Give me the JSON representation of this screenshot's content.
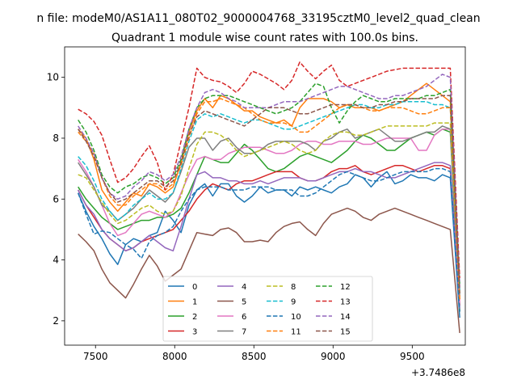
{
  "chart_data": {
    "type": "line",
    "suptitle": "n file: modeM0/AS1A11_080T02_9000004768_33195cztM0_level2_quad_clean",
    "title": "Quadrant 1 module wise count rates with 100.0s bins.",
    "xlabel": "",
    "ylabel": "",
    "x_offset_label": "+3.7486e8",
    "xlim": [
      7305,
      9835
    ],
    "ylim": [
      1.2,
      11.0
    ],
    "x_ticks": [
      7500,
      8000,
      8500,
      9000,
      9500
    ],
    "x_tick_labels": [
      "7500",
      "8000",
      "8500",
      "9000",
      "9500"
    ],
    "y_ticks": [
      2,
      4,
      6,
      8,
      10
    ],
    "y_tick_labels": [
      "2",
      "4",
      "6",
      "8",
      "10"
    ],
    "grid": false,
    "legend_position": "lower center",
    "x": [
      7390,
      7440,
      7490,
      7540,
      7590,
      7640,
      7690,
      7740,
      7790,
      7840,
      7890,
      7940,
      7990,
      8040,
      8090,
      8140,
      8190,
      8240,
      8290,
      8340,
      8390,
      8440,
      8490,
      8540,
      8590,
      8640,
      8690,
      8740,
      8790,
      8840,
      8890,
      8940,
      8990,
      9040,
      9090,
      9140,
      9190,
      9240,
      9290,
      9340,
      9390,
      9440,
      9490,
      9540,
      9590,
      9640,
      9690,
      9740,
      9800
    ],
    "series": [
      {
        "name": "0",
        "color": "#1f77b4",
        "dash": "solid",
        "values": [
          6.2,
          5.6,
          5.1,
          4.7,
          4.2,
          3.85,
          4.5,
          4.7,
          4.6,
          4.8,
          4.9,
          5.6,
          5.3,
          4.9,
          5.8,
          6.3,
          6.5,
          6.1,
          6.5,
          6.5,
          6.1,
          5.9,
          6.1,
          6.4,
          6.2,
          6.3,
          6.3,
          6.1,
          6.4,
          6.3,
          6.4,
          6.3,
          6.2,
          6.4,
          6.5,
          6.8,
          6.7,
          6.4,
          6.7,
          6.9,
          6.5,
          6.6,
          6.8,
          6.7,
          6.7,
          6.6,
          6.8,
          6.7,
          2.1
        ]
      },
      {
        "name": "1",
        "color": "#ff7f0e",
        "dash": "solid",
        "values": [
          8.3,
          8.0,
          7.3,
          6.3,
          5.9,
          5.6,
          5.9,
          6.2,
          6.1,
          6.5,
          6.4,
          6.2,
          6.4,
          7.2,
          8.2,
          8.9,
          9.3,
          9.0,
          9.4,
          9.3,
          9.1,
          8.9,
          8.9,
          8.7,
          8.6,
          8.5,
          8.6,
          8.4,
          9.0,
          9.3,
          9.3,
          9.3,
          9.2,
          9.0,
          9.1,
          9.0,
          9.0,
          9.0,
          8.9,
          9.0,
          9.1,
          9.2,
          9.4,
          9.6,
          9.8,
          9.6,
          9.4,
          9.2,
          2.7
        ]
      },
      {
        "name": "2",
        "color": "#2ca02c",
        "dash": "solid",
        "values": [
          6.4,
          6.0,
          5.7,
          5.4,
          5.2,
          5.0,
          5.1,
          5.2,
          5.3,
          5.3,
          5.4,
          5.4,
          5.5,
          5.7,
          6.2,
          6.8,
          7.4,
          7.3,
          7.2,
          7.2,
          7.5,
          7.8,
          7.6,
          7.3,
          7.0,
          6.9,
          7.0,
          7.2,
          7.4,
          7.5,
          7.4,
          7.3,
          7.2,
          7.4,
          7.6,
          7.9,
          8.1,
          8.0,
          7.8,
          7.6,
          7.6,
          7.8,
          8.0,
          8.1,
          8.2,
          8.1,
          8.3,
          8.2,
          2.3
        ]
      },
      {
        "name": "3",
        "color": "#d62728",
        "dash": "solid",
        "values": [
          6.3,
          5.8,
          5.4,
          5.0,
          4.7,
          4.5,
          4.3,
          4.4,
          4.6,
          4.7,
          4.8,
          4.9,
          5.0,
          5.3,
          5.6,
          6.0,
          6.3,
          6.5,
          6.4,
          6.3,
          6.5,
          6.6,
          6.6,
          6.7,
          6.8,
          6.9,
          6.9,
          6.9,
          6.7,
          6.6,
          6.6,
          6.7,
          6.9,
          7.0,
          7.0,
          7.1,
          6.9,
          6.8,
          6.9,
          7.0,
          7.1,
          7.1,
          7.0,
          6.9,
          7.0,
          7.1,
          7.1,
          7.0,
          2.5
        ]
      },
      {
        "name": "4",
        "color": "#9467bd",
        "dash": "solid",
        "values": [
          6.3,
          5.8,
          5.5,
          5.0,
          4.7,
          4.5,
          4.3,
          4.4,
          4.6,
          4.8,
          4.6,
          4.4,
          4.3,
          5.1,
          6.0,
          6.8,
          6.9,
          6.7,
          6.7,
          6.6,
          6.6,
          6.5,
          6.5,
          6.6,
          6.5,
          6.6,
          6.7,
          6.7,
          6.7,
          6.6,
          6.6,
          6.7,
          6.8,
          6.9,
          6.9,
          7.0,
          6.9,
          6.9,
          6.8,
          6.7,
          6.7,
          6.8,
          6.9,
          7.0,
          7.1,
          7.2,
          7.2,
          7.1,
          2.4
        ]
      },
      {
        "name": "5",
        "color": "#8c564b",
        "dash": "solid",
        "values": [
          4.85,
          4.6,
          4.3,
          3.7,
          3.25,
          3.0,
          2.75,
          3.2,
          3.7,
          4.15,
          3.8,
          3.3,
          3.5,
          3.7,
          4.3,
          4.9,
          4.85,
          4.8,
          5.0,
          5.05,
          4.9,
          4.6,
          4.6,
          4.65,
          4.6,
          4.9,
          5.1,
          5.2,
          5.25,
          5.0,
          4.8,
          5.2,
          5.5,
          5.6,
          5.7,
          5.6,
          5.4,
          5.3,
          5.5,
          5.6,
          5.7,
          5.6,
          5.5,
          5.4,
          5.3,
          5.2,
          5.1,
          5.0,
          1.6
        ]
      },
      {
        "name": "6",
        "color": "#e377c2",
        "dash": "solid",
        "values": [
          7.3,
          6.9,
          6.4,
          5.8,
          5.2,
          4.8,
          4.9,
          5.2,
          5.5,
          5.6,
          5.5,
          5.4,
          5.6,
          6.2,
          6.8,
          7.3,
          7.4,
          7.3,
          7.3,
          7.5,
          7.6,
          7.7,
          7.7,
          7.7,
          7.6,
          7.5,
          7.5,
          7.6,
          7.8,
          7.9,
          7.9,
          7.8,
          7.8,
          7.9,
          7.9,
          7.9,
          7.8,
          7.8,
          7.9,
          8.0,
          8.0,
          8.0,
          8.0,
          7.6,
          7.6,
          8.1,
          8.3,
          8.3,
          2.6
        ]
      },
      {
        "name": "7",
        "color": "#7f7f7f",
        "dash": "solid",
        "values": [
          7.2,
          6.8,
          6.4,
          5.8,
          5.6,
          5.3,
          5.5,
          5.7,
          6.0,
          6.3,
          6.1,
          5.9,
          6.2,
          6.9,
          7.7,
          8.0,
          8.0,
          7.6,
          7.9,
          8.0,
          7.7,
          7.5,
          7.5,
          7.6,
          7.8,
          7.9,
          7.9,
          7.9,
          7.9,
          7.8,
          7.6,
          7.9,
          8.0,
          8.2,
          8.3,
          8.0,
          8.1,
          8.2,
          8.3,
          8.1,
          7.9,
          7.9,
          8.0,
          8.1,
          8.2,
          8.2,
          8.4,
          8.3,
          2.8
        ]
      },
      {
        "name": "8",
        "color": "#bcbd22",
        "dash": "dashed",
        "values": [
          6.8,
          6.7,
          6.3,
          5.9,
          5.5,
          5.2,
          5.3,
          5.5,
          5.7,
          5.8,
          5.6,
          5.5,
          5.6,
          6.1,
          7.0,
          7.8,
          8.2,
          8.2,
          8.1,
          7.9,
          7.6,
          7.4,
          7.5,
          7.6,
          7.7,
          7.8,
          7.9,
          7.8,
          7.6,
          7.5,
          7.6,
          7.9,
          8.1,
          8.2,
          8.2,
          8.1,
          8.1,
          8.2,
          8.3,
          8.4,
          8.4,
          8.4,
          8.4,
          8.4,
          8.4,
          8.5,
          8.5,
          8.5,
          2.9
        ]
      },
      {
        "name": "9",
        "color": "#17becf",
        "dash": "dashed",
        "values": [
          7.4,
          7.1,
          6.6,
          6.0,
          5.6,
          5.3,
          5.5,
          5.8,
          6.0,
          6.2,
          6.0,
          6.0,
          6.2,
          7.0,
          7.9,
          8.6,
          8.8,
          8.7,
          8.8,
          8.7,
          8.6,
          8.5,
          8.6,
          8.6,
          8.5,
          8.4,
          8.3,
          8.3,
          8.4,
          8.5,
          8.6,
          8.7,
          8.8,
          8.9,
          9.0,
          9.1,
          9.1,
          9.0,
          9.0,
          9.1,
          9.1,
          9.2,
          9.2,
          9.2,
          9.2,
          9.1,
          9.1,
          9.0,
          3.0
        ]
      },
      {
        "name": "10",
        "color": "#1f77b4",
        "dash": "dashed",
        "values": [
          6.2,
          5.5,
          4.85,
          4.95,
          4.9,
          4.7,
          4.5,
          4.35,
          4.05,
          4.6,
          4.8,
          4.9,
          5.1,
          5.6,
          6.0,
          6.3,
          6.4,
          6.4,
          6.4,
          6.3,
          6.3,
          6.3,
          6.4,
          6.4,
          6.4,
          6.3,
          6.3,
          6.3,
          6.1,
          6.1,
          6.2,
          6.4,
          6.6,
          6.8,
          6.9,
          6.8,
          6.7,
          6.6,
          6.6,
          6.7,
          6.8,
          6.9,
          6.9,
          6.9,
          6.9,
          7.0,
          7.0,
          6.9,
          2.3
        ]
      },
      {
        "name": "11",
        "color": "#ff7f0e",
        "dash": "dashed",
        "values": [
          8.2,
          7.9,
          7.5,
          6.7,
          6.1,
          5.8,
          5.8,
          6.1,
          6.3,
          6.5,
          6.5,
          6.3,
          6.5,
          7.1,
          8.0,
          8.8,
          9.2,
          9.2,
          9.3,
          9.2,
          9.1,
          9.0,
          8.8,
          8.6,
          8.5,
          8.5,
          8.5,
          8.4,
          8.2,
          8.2,
          8.4,
          8.6,
          8.8,
          9.0,
          9.1,
          9.1,
          9.0,
          8.9,
          8.9,
          9.0,
          9.0,
          9.0,
          8.9,
          8.8,
          8.8,
          8.9,
          9.0,
          9.0,
          2.7
        ]
      },
      {
        "name": "12",
        "color": "#2ca02c",
        "dash": "dashed",
        "values": [
          8.6,
          8.2,
          7.6,
          6.8,
          6.4,
          6.2,
          6.4,
          6.5,
          6.7,
          6.8,
          6.7,
          6.5,
          6.7,
          7.3,
          8.3,
          9.0,
          9.3,
          9.4,
          9.4,
          9.4,
          9.3,
          9.2,
          9.1,
          9.0,
          8.9,
          8.8,
          8.9,
          9.0,
          9.2,
          9.5,
          9.8,
          9.7,
          9.0,
          8.5,
          8.9,
          9.2,
          9.4,
          9.3,
          9.2,
          9.2,
          9.3,
          9.3,
          9.3,
          9.3,
          9.4,
          9.4,
          9.5,
          9.6,
          3.2
        ]
      },
      {
        "name": "13",
        "color": "#d62728",
        "dash": "dashed",
        "values": [
          8.95,
          8.8,
          8.55,
          8.1,
          7.3,
          6.55,
          6.7,
          7.0,
          7.4,
          7.75,
          7.2,
          6.3,
          6.8,
          7.9,
          9.0,
          10.3,
          10.0,
          9.9,
          9.85,
          9.7,
          9.5,
          9.8,
          10.2,
          10.1,
          9.95,
          9.8,
          9.6,
          9.9,
          10.5,
          10.2,
          9.95,
          10.2,
          10.4,
          9.9,
          9.7,
          9.8,
          9.9,
          10.0,
          10.1,
          10.2,
          10.25,
          10.3,
          10.3,
          10.3,
          10.3,
          10.3,
          10.3,
          10.3,
          3.4
        ]
      },
      {
        "name": "14",
        "color": "#9467bd",
        "dash": "dashed",
        "values": [
          8.4,
          8.0,
          7.5,
          6.7,
          6.2,
          6.0,
          6.1,
          6.4,
          6.6,
          6.9,
          6.8,
          6.6,
          6.8,
          7.4,
          8.3,
          9.0,
          9.5,
          9.6,
          9.5,
          9.3,
          9.2,
          9.0,
          9.0,
          9.0,
          9.0,
          9.1,
          9.2,
          9.2,
          9.2,
          9.3,
          9.4,
          9.5,
          9.6,
          9.7,
          9.7,
          9.6,
          9.5,
          9.4,
          9.3,
          9.3,
          9.4,
          9.4,
          9.5,
          9.6,
          9.7,
          9.9,
          10.1,
          10.0,
          3.1
        ]
      },
      {
        "name": "15",
        "color": "#8c564b",
        "dash": "dashed",
        "values": [
          8.3,
          7.9,
          7.4,
          6.7,
          6.2,
          5.9,
          6.0,
          6.2,
          6.4,
          6.6,
          6.6,
          6.4,
          6.6,
          7.2,
          8.1,
          8.7,
          8.9,
          8.8,
          8.7,
          8.6,
          8.5,
          8.4,
          8.6,
          8.8,
          9.0,
          9.0,
          9.0,
          8.9,
          8.8,
          8.8,
          8.9,
          9.0,
          9.1,
          9.1,
          9.1,
          9.1,
          9.0,
          9.0,
          9.1,
          9.1,
          9.2,
          9.2,
          9.3,
          9.3,
          9.3,
          9.3,
          9.4,
          9.4,
          2.9
        ]
      }
    ]
  }
}
